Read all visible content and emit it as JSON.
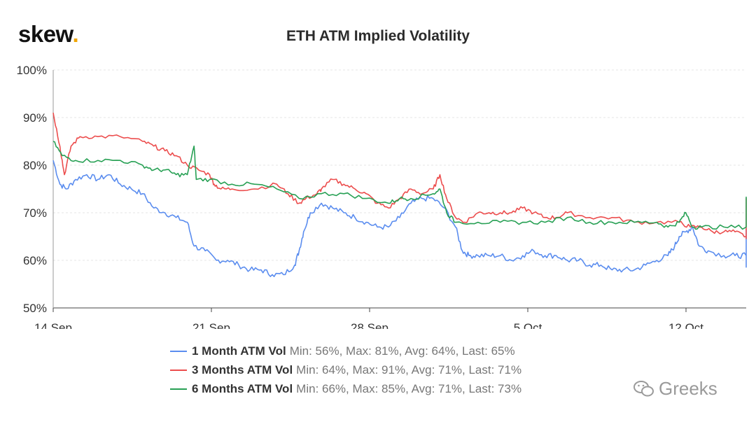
{
  "brand": {
    "logo_text": "skew",
    "logo_dot": ".",
    "dot_color": "#f0a500"
  },
  "watermark": {
    "text": "Greeks",
    "icon": "wechat-icon"
  },
  "chart_data": {
    "type": "line",
    "title": "ETH ATM Implied Volatility",
    "x_range": [
      "14 Sep",
      "15 Oct"
    ],
    "x_ticks": [
      "14 Sep",
      "21 Sep",
      "28 Sep",
      "5 Oct",
      "12 Oct"
    ],
    "y_ticks": [
      "50%",
      "60%",
      "70%",
      "80%",
      "90%",
      "100%"
    ],
    "ylim": [
      50,
      100
    ],
    "grid": true,
    "legend_position": "bottom",
    "series": [
      {
        "name": "1 Month ATM Vol",
        "stats": "Min: 56%, Max: 81%, Avg: 64%, Last: 65%",
        "color": "#5b8def",
        "points": [
          [
            0,
            81
          ],
          [
            0.3,
            76
          ],
          [
            0.6,
            75
          ],
          [
            1,
            77
          ],
          [
            1.5,
            78
          ],
          [
            2,
            77
          ],
          [
            2.5,
            78
          ],
          [
            3,
            76
          ],
          [
            3.5,
            75
          ],
          [
            4,
            74
          ],
          [
            4.5,
            71
          ],
          [
            5,
            70
          ],
          [
            5.5,
            69
          ],
          [
            6,
            68
          ],
          [
            6.3,
            63
          ],
          [
            6.8,
            62
          ],
          [
            7.3,
            60
          ],
          [
            7.8,
            60
          ],
          [
            8.3,
            59
          ],
          [
            8.8,
            58
          ],
          [
            9.3,
            58
          ],
          [
            9.8,
            57
          ],
          [
            10.3,
            57
          ],
          [
            10.8,
            59
          ],
          [
            11,
            62
          ],
          [
            11.2,
            66
          ],
          [
            11.5,
            70
          ],
          [
            12,
            72
          ],
          [
            12.5,
            71
          ],
          [
            13,
            70
          ],
          [
            13.5,
            69
          ],
          [
            14,
            68
          ],
          [
            14.5,
            67
          ],
          [
            15,
            67
          ],
          [
            15.5,
            69
          ],
          [
            16,
            72
          ],
          [
            16.5,
            73
          ],
          [
            17,
            73
          ],
          [
            17.5,
            71
          ],
          [
            18,
            67
          ],
          [
            18.3,
            62
          ],
          [
            18.6,
            61
          ],
          [
            19,
            61
          ],
          [
            19.5,
            61
          ],
          [
            20,
            61
          ],
          [
            20.5,
            60
          ],
          [
            21,
            61
          ],
          [
            21.5,
            62
          ],
          [
            22,
            61
          ],
          [
            22.5,
            61
          ],
          [
            23,
            60
          ],
          [
            23.5,
            60
          ],
          [
            24,
            59
          ],
          [
            24.5,
            59
          ],
          [
            25,
            58
          ],
          [
            25.5,
            58
          ],
          [
            26,
            58
          ],
          [
            26.5,
            59
          ],
          [
            27,
            60
          ],
          [
            27.5,
            61
          ],
          [
            27.8,
            63
          ],
          [
            28,
            65
          ],
          [
            28.3,
            66
          ],
          [
            28.6,
            67
          ],
          [
            28.9,
            63
          ],
          [
            29.3,
            62
          ],
          [
            30,
            61
          ],
          [
            30.5,
            61
          ],
          [
            31,
            61
          ],
          [
            31.5,
            60
          ],
          [
            32,
            60
          ],
          [
            32.5,
            61
          ],
          [
            33,
            61
          ],
          [
            33.5,
            60
          ],
          [
            34,
            60
          ],
          [
            34.5,
            61
          ],
          [
            35,
            60
          ],
          [
            35.5,
            61
          ],
          [
            36,
            62
          ],
          [
            36.5,
            63
          ],
          [
            37,
            63
          ],
          [
            37.5,
            61
          ],
          [
            38,
            63
          ],
          [
            38.5,
            62
          ],
          [
            39,
            61
          ],
          [
            39.5,
            62
          ],
          [
            40,
            63
          ],
          [
            40.5,
            62
          ],
          [
            41,
            60
          ],
          [
            41.5,
            59
          ],
          [
            42,
            61
          ],
          [
            42.5,
            61
          ],
          [
            43,
            61
          ],
          [
            43.5,
            62
          ],
          [
            44,
            62
          ],
          [
            44.5,
            61
          ],
          [
            45,
            61
          ],
          [
            45.5,
            61
          ],
          [
            46,
            61
          ],
          [
            46.5,
            61
          ],
          [
            47,
            61
          ],
          [
            47.5,
            60
          ],
          [
            48,
            61
          ],
          [
            48.5,
            62
          ],
          [
            49,
            66
          ],
          [
            49.5,
            66
          ],
          [
            50,
            66
          ],
          [
            50.5,
            65
          ],
          [
            51,
            65
          ]
        ]
      },
      {
        "name": "3 Months ATM Vol",
        "stats": "Min: 64%, Max: 91%, Avg: 71%, Last: 71%",
        "color": "#ec4d4d",
        "points": [
          [
            0,
            91
          ],
          [
            0.3,
            84
          ],
          [
            0.5,
            78
          ],
          [
            0.8,
            84
          ],
          [
            1.2,
            86
          ],
          [
            2,
            86
          ],
          [
            3,
            86
          ],
          [
            4,
            85
          ],
          [
            4.5,
            84
          ],
          [
            5,
            83
          ],
          [
            5.5,
            82
          ],
          [
            6,
            80
          ],
          [
            6.5,
            79
          ],
          [
            7,
            78
          ],
          [
            7.2,
            76
          ],
          [
            7.5,
            75
          ],
          [
            8,
            75
          ],
          [
            9,
            75
          ],
          [
            10,
            76
          ],
          [
            10.5,
            74
          ],
          [
            11,
            72
          ],
          [
            11.3,
            73
          ],
          [
            11.8,
            74
          ],
          [
            12,
            75
          ],
          [
            12.5,
            77
          ],
          [
            13,
            76
          ],
          [
            13.5,
            75
          ],
          [
            14,
            74
          ],
          [
            14.5,
            72
          ],
          [
            15,
            71
          ],
          [
            15.5,
            73
          ],
          [
            16,
            75
          ],
          [
            16.5,
            74
          ],
          [
            17,
            75
          ],
          [
            17.3,
            78
          ],
          [
            17.6,
            73
          ],
          [
            18,
            69
          ],
          [
            18.4,
            68
          ],
          [
            19,
            70
          ],
          [
            19.5,
            70
          ],
          [
            20,
            70
          ],
          [
            20.5,
            70
          ],
          [
            21,
            71
          ],
          [
            21.5,
            70
          ],
          [
            22,
            69
          ],
          [
            22.5,
            69
          ],
          [
            23,
            70
          ],
          [
            24,
            69
          ],
          [
            25,
            69
          ],
          [
            26,
            68
          ],
          [
            27,
            68
          ],
          [
            28,
            68
          ],
          [
            28.5,
            67
          ],
          [
            29,
            67
          ],
          [
            29.5,
            66
          ],
          [
            30,
            66
          ],
          [
            30.5,
            66
          ],
          [
            31,
            65
          ],
          [
            31.5,
            65
          ],
          [
            32,
            66
          ],
          [
            32.5,
            67
          ],
          [
            33,
            67
          ],
          [
            34,
            67
          ],
          [
            35,
            67
          ],
          [
            36,
            67
          ],
          [
            36.5,
            68
          ],
          [
            37,
            68
          ],
          [
            37.5,
            68
          ],
          [
            38,
            68
          ],
          [
            38.5,
            67
          ],
          [
            39,
            67
          ],
          [
            40,
            68
          ],
          [
            40.5,
            68
          ],
          [
            41,
            68
          ],
          [
            41.5,
            67
          ],
          [
            42,
            67
          ],
          [
            43,
            67
          ],
          [
            43.5,
            67
          ],
          [
            44,
            67
          ],
          [
            44.5,
            68
          ],
          [
            45,
            68
          ],
          [
            45.5,
            67
          ],
          [
            46,
            67
          ],
          [
            46.5,
            68
          ],
          [
            47,
            68
          ],
          [
            47.5,
            68
          ],
          [
            48,
            68
          ],
          [
            48.5,
            68
          ],
          [
            49,
            73
          ],
          [
            49.5,
            72
          ],
          [
            50,
            72
          ],
          [
            50.5,
            71
          ],
          [
            51,
            71
          ]
        ]
      },
      {
        "name": "6 Months ATM Vol",
        "stats": "Min: 66%, Max: 85%, Avg: 71%, Last: 73%",
        "color": "#27a054",
        "points": [
          [
            0,
            85
          ],
          [
            0.4,
            82
          ],
          [
            1,
            81
          ],
          [
            2,
            81
          ],
          [
            3,
            81
          ],
          [
            4,
            80
          ],
          [
            4.5,
            79
          ],
          [
            5,
            79
          ],
          [
            5.5,
            78
          ],
          [
            6,
            78
          ],
          [
            6.3,
            84
          ],
          [
            6.4,
            77
          ],
          [
            7,
            77
          ],
          [
            8,
            76
          ],
          [
            9,
            76
          ],
          [
            10,
            75
          ],
          [
            11,
            73
          ],
          [
            12,
            74
          ],
          [
            13,
            74
          ],
          [
            14,
            73
          ],
          [
            15,
            72
          ],
          [
            15.5,
            73
          ],
          [
            16,
            73
          ],
          [
            17,
            74
          ],
          [
            17.3,
            75
          ],
          [
            17.6,
            70
          ],
          [
            18,
            68
          ],
          [
            19,
            68
          ],
          [
            20,
            68
          ],
          [
            21,
            68
          ],
          [
            22,
            68
          ],
          [
            23,
            69
          ],
          [
            24,
            68
          ],
          [
            25,
            68
          ],
          [
            26,
            68
          ],
          [
            27,
            68
          ],
          [
            27.5,
            67
          ],
          [
            28,
            68
          ],
          [
            28.3,
            70
          ],
          [
            28.6,
            67
          ],
          [
            29,
            67
          ],
          [
            30,
            67
          ],
          [
            31,
            67
          ],
          [
            32,
            68
          ],
          [
            33,
            68
          ],
          [
            34,
            69
          ],
          [
            35,
            69
          ],
          [
            36,
            69
          ],
          [
            37,
            69
          ],
          [
            37.5,
            69
          ],
          [
            38,
            70
          ],
          [
            38.5,
            70
          ],
          [
            39,
            70
          ],
          [
            40,
            69
          ],
          [
            41,
            70
          ],
          [
            41.5,
            69
          ],
          [
            42,
            70
          ],
          [
            43,
            70
          ],
          [
            44,
            70
          ],
          [
            45,
            70
          ],
          [
            46,
            70
          ],
          [
            47,
            70
          ],
          [
            48,
            70
          ],
          [
            48.5,
            71
          ],
          [
            49,
            73
          ],
          [
            49.5,
            72
          ],
          [
            50,
            73
          ],
          [
            50.5,
            73
          ],
          [
            51,
            73
          ]
        ]
      }
    ]
  }
}
